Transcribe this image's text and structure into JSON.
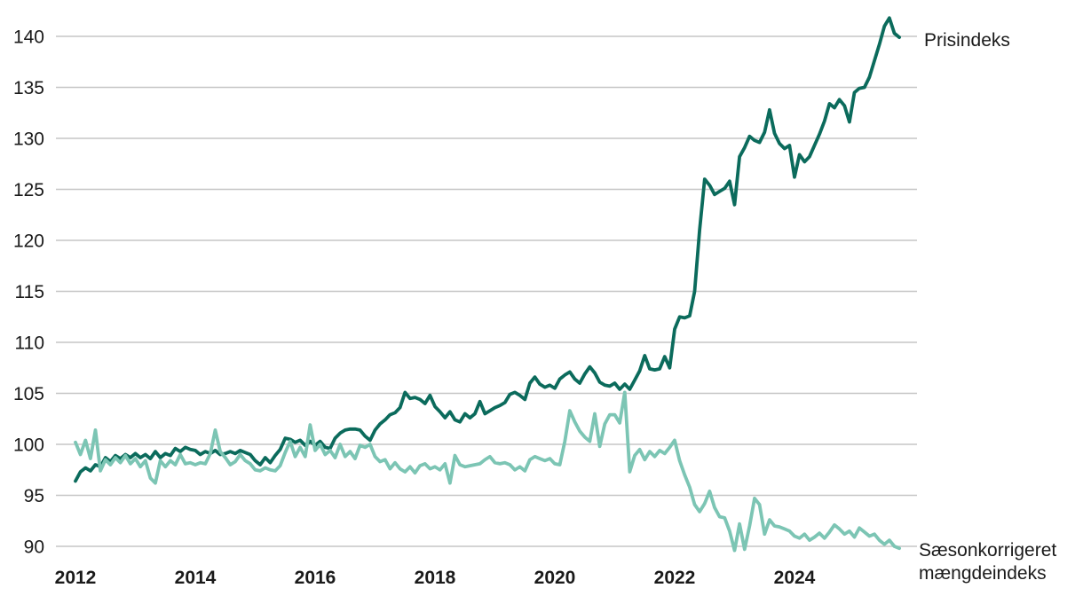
{
  "labels": {
    "prisindeks": "Prisindeks",
    "maengde_line1": "Sæsonkorrigeret",
    "maengde_line2": "mængdeindeks"
  },
  "colors": {
    "prisindeks_line": "#0b6b5c",
    "maengdeindeks_line": "#7cc5b4",
    "gridline": "#c6c6c6",
    "text": "#1a1a1a",
    "background": "#ffffff"
  },
  "chart_data": {
    "type": "line",
    "title": "",
    "xlabel": "",
    "ylabel": "",
    "grid": "horizontal",
    "x_unit": "month",
    "x_start": "2012-01",
    "x_end": "2025-10",
    "ylim": [
      88,
      143
    ],
    "y_ticks": [
      90,
      95,
      100,
      105,
      110,
      115,
      120,
      125,
      130,
      135,
      140
    ],
    "x_ticks": [
      {
        "label": "2012",
        "year": 2012
      },
      {
        "label": "2014",
        "year": 2014
      },
      {
        "label": "2016",
        "year": 2016
      },
      {
        "label": "2018",
        "year": 2018
      },
      {
        "label": "2020",
        "year": 2020
      },
      {
        "label": "2022",
        "year": 2022
      },
      {
        "label": "2024",
        "year": 2024
      }
    ],
    "legend_position": "inline-right",
    "series": [
      {
        "id": "prisindeks-line",
        "name": "Prisindeks",
        "color": "#0b6b5c",
        "values": [
          96.4,
          97.3,
          97.7,
          97.4,
          98.0,
          97.8,
          98.7,
          98.3,
          98.9,
          98.6,
          99.0,
          98.7,
          99.1,
          98.7,
          99.0,
          98.6,
          99.3,
          98.7,
          99.1,
          98.9,
          99.6,
          99.3,
          99.7,
          99.5,
          99.4,
          99.0,
          99.3,
          99.1,
          99.4,
          99.0,
          99.1,
          99.3,
          99.1,
          99.4,
          99.2,
          99.0,
          98.4,
          98.0,
          98.7,
          98.2,
          98.9,
          99.5,
          100.6,
          100.5,
          100.2,
          100.4,
          99.9,
          100.3,
          99.9,
          100.3,
          99.7,
          99.6,
          100.6,
          101.1,
          101.4,
          101.5,
          101.5,
          101.4,
          100.8,
          100.4,
          101.4,
          102.0,
          102.4,
          102.9,
          103.1,
          103.6,
          105.1,
          104.5,
          104.6,
          104.4,
          104.0,
          104.8,
          103.7,
          103.2,
          102.6,
          103.2,
          102.4,
          102.2,
          103.0,
          102.6,
          103.0,
          104.2,
          103.0,
          103.3,
          103.6,
          103.8,
          104.1,
          104.9,
          105.1,
          104.8,
          104.4,
          106.0,
          106.6,
          105.9,
          105.6,
          105.8,
          105.5,
          106.4,
          106.8,
          107.1,
          106.4,
          106.0,
          106.9,
          107.6,
          107.0,
          106.1,
          105.8,
          105.7,
          106.0,
          105.4,
          105.9,
          105.4,
          106.3,
          107.2,
          108.7,
          107.4,
          107.3,
          107.4,
          108.6,
          107.5,
          111.3,
          112.5,
          112.4,
          112.6,
          115.0,
          121.0,
          126.0,
          125.4,
          124.5,
          124.8,
          125.1,
          125.8,
          123.5,
          128.2,
          129.1,
          130.2,
          129.8,
          129.6,
          130.6,
          132.8,
          130.5,
          129.5,
          129.0,
          129.3,
          126.2,
          128.4,
          127.7,
          128.2,
          129.3,
          130.4,
          131.7,
          133.4,
          133.0,
          133.8,
          133.2,
          131.6,
          134.5,
          134.9,
          135.0,
          136.0,
          137.6,
          139.2,
          141.0,
          141.8,
          140.3,
          139.9
        ]
      },
      {
        "id": "maengdeindeks-line",
        "name": "Sæsonkorrigeret mængdeindeks",
        "color": "#7cc5b4",
        "values": [
          100.2,
          99.0,
          100.4,
          98.6,
          101.4,
          97.4,
          98.5,
          98.0,
          98.7,
          98.2,
          98.9,
          98.1,
          98.6,
          97.8,
          98.4,
          96.7,
          96.2,
          98.4,
          97.8,
          98.4,
          98.0,
          99.0,
          98.1,
          98.2,
          98.0,
          98.2,
          98.1,
          99.1,
          101.4,
          99.3,
          98.7,
          98.0,
          98.3,
          99.0,
          98.4,
          98.1,
          97.5,
          97.4,
          97.7,
          97.5,
          97.4,
          97.9,
          99.2,
          100.3,
          98.8,
          99.7,
          98.8,
          101.9,
          99.4,
          100.0,
          99.0,
          99.4,
          98.7,
          100.0,
          98.8,
          99.3,
          98.6,
          99.9,
          99.7,
          100.0,
          98.8,
          98.3,
          98.5,
          97.6,
          98.2,
          97.6,
          97.3,
          97.8,
          97.2,
          97.9,
          98.1,
          97.6,
          97.8,
          97.5,
          98.1,
          96.2,
          98.9,
          98.0,
          97.8,
          97.9,
          98.0,
          98.1,
          98.5,
          98.8,
          98.2,
          98.1,
          98.2,
          98.0,
          97.5,
          97.8,
          97.4,
          98.5,
          98.8,
          98.6,
          98.4,
          98.6,
          98.1,
          98.0,
          100.3,
          103.3,
          102.2,
          101.3,
          100.7,
          100.3,
          103.0,
          99.8,
          102.0,
          102.9,
          102.9,
          102.1,
          105.1,
          97.3,
          98.9,
          99.5,
          98.5,
          99.3,
          98.8,
          99.4,
          99.1,
          99.7,
          100.4,
          98.4,
          97.0,
          95.8,
          94.1,
          93.4,
          94.2,
          95.4,
          93.8,
          92.9,
          92.8,
          91.5,
          89.6,
          92.2,
          89.7,
          92.0,
          94.7,
          94.1,
          91.2,
          92.6,
          92.0,
          91.9,
          91.7,
          91.5,
          91.0,
          90.8,
          91.2,
          90.6,
          90.9,
          91.3,
          90.8,
          91.4,
          92.1,
          91.7,
          91.2,
          91.5,
          90.9,
          91.8,
          91.4,
          91.0,
          91.2,
          90.6,
          90.2,
          90.6,
          90.0,
          89.8
        ]
      }
    ]
  }
}
